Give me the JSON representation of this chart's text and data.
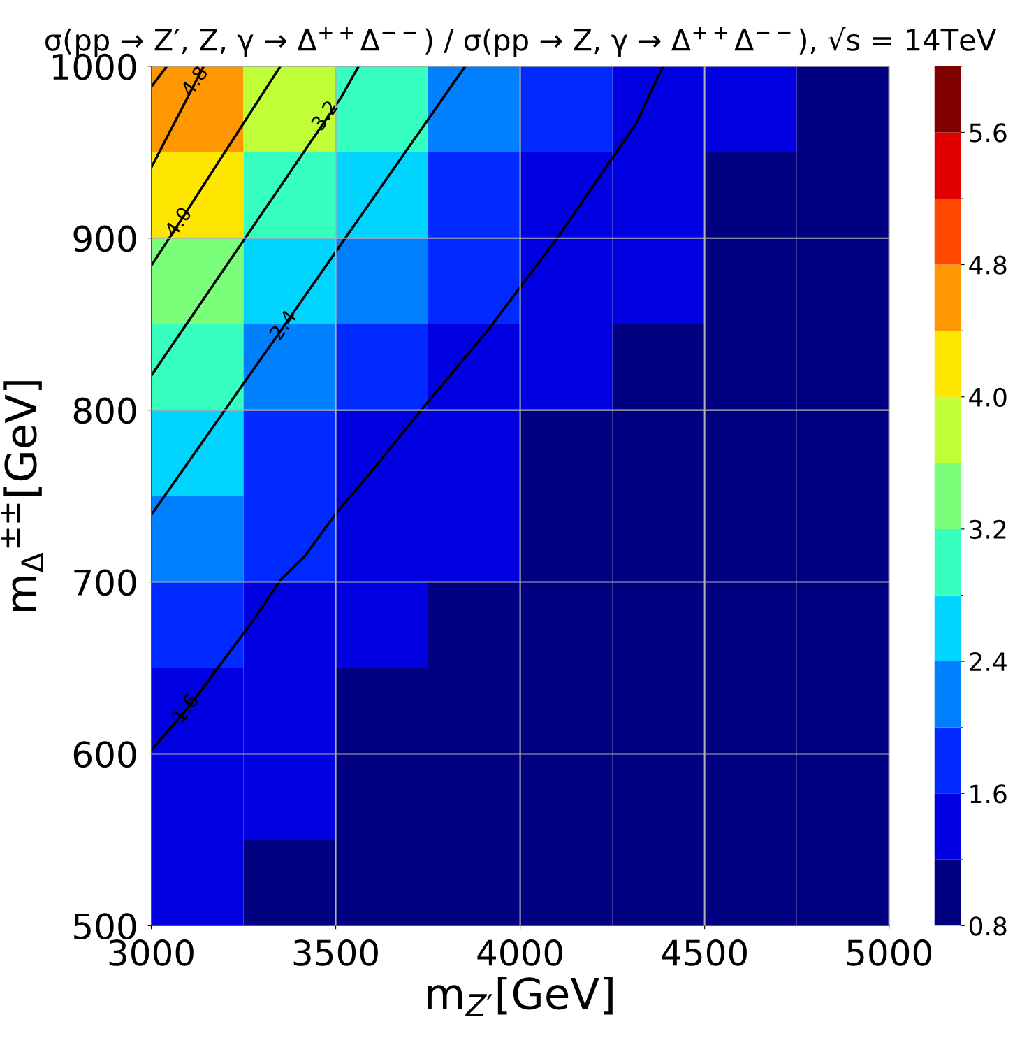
{
  "chart_data": {
    "type": "heatmap",
    "title": "σ(pp → Z′, Z, γ → Δ$^{++}$Δ$^{−−}$) / σ(pp → Z, γ → Δ$^{++}$Δ$^{−−}$), √s = 14TeV",
    "xlabel": "m$_{Z′}$[GeV]",
    "ylabel": "m$_{Δ}$$^{±±}$[GeV]",
    "x": [
      3125,
      3375,
      3625,
      3875,
      4125,
      4375,
      4625,
      4875
    ],
    "y": [
      975,
      925,
      875,
      825,
      775,
      725,
      675,
      625,
      575,
      525
    ],
    "cells": [
      [
        4.77,
        3.76,
        2.92,
        2.29,
        1.83,
        1.52,
        1.32,
        1.12
      ],
      [
        4.06,
        3.18,
        2.46,
        1.95,
        1.58,
        1.38,
        1.18,
        0.98
      ],
      [
        3.42,
        2.65,
        2.1,
        1.69,
        1.44,
        1.24,
        1.04,
        0.85
      ],
      [
        2.87,
        2.25,
        1.81,
        1.51,
        1.31,
        1.11,
        0.91,
        0.85
      ],
      [
        2.42,
        1.93,
        1.57,
        1.37,
        1.17,
        0.97,
        0.85,
        0.85
      ],
      [
        2.06,
        1.66,
        1.43,
        1.23,
        1.03,
        0.85,
        0.85,
        0.85
      ],
      [
        1.78,
        1.49,
        1.29,
        1.09,
        0.89,
        0.85,
        0.85,
        0.85
      ],
      [
        1.56,
        1.36,
        1.16,
        0.96,
        0.85,
        0.85,
        0.85,
        0.85
      ],
      [
        1.42,
        1.22,
        1.02,
        0.85,
        0.85,
        0.85,
        0.85,
        0.85
      ],
      [
        1.28,
        1.08,
        0.88,
        0.85,
        0.85,
        0.85,
        0.85,
        0.85
      ]
    ],
    "series": [
      {
        "type": "line",
        "color": "#000000",
        "x": [
          3000,
          3042
        ],
        "values": [
          988,
          1000
        ]
      },
      {
        "type": "line",
        "color": "#000000",
        "x": [
          3000,
          3142
        ],
        "values": [
          941,
          1000
        ]
      },
      {
        "type": "line",
        "color": "#000000",
        "x": [
          3000,
          3076,
          3350
        ],
        "values": [
          884,
          909,
          1000
        ]
      },
      {
        "type": "line",
        "color": "#000000",
        "x": [
          3000,
          3515,
          3562
        ],
        "values": [
          820,
          982,
          1000
        ]
      },
      {
        "type": "line",
        "color": "#000000",
        "x": [
          3000,
          3360,
          3851
        ],
        "values": [
          739,
          849,
          1000
        ]
      },
      {
        "type": "line",
        "color": "#000000",
        "x": [
          3000,
          3104,
          3274,
          3350,
          3416,
          3501,
          3596,
          3728,
          3918,
          4107,
          4315,
          4387
        ],
        "values": [
          602,
          628,
          677,
          701,
          715,
          740,
          764,
          799,
          848,
          902,
          967,
          1000
        ]
      }
    ],
    "annotations": [
      {
        "text": "4.8",
        "x": 3120,
        "y": 991
      },
      {
        "text": "4.0",
        "x": 3076,
        "y": 909
      },
      {
        "text": "3.2",
        "x": 3473,
        "y": 971
      },
      {
        "text": "2.4",
        "x": 3360,
        "y": 849
      },
      {
        "text": "1.6",
        "x": 3095,
        "y": 626
      }
    ],
    "line_style": "solid",
    "xlim": [
      3000,
      5000
    ],
    "xticks": [
      3000,
      3500,
      4000,
      4500,
      5000
    ],
    "ylim": [
      500,
      1000
    ],
    "yticks": [
      500,
      600,
      700,
      800,
      900,
      1000
    ],
    "clim": [
      0.8,
      6.0
    ],
    "cticks": [
      0.8,
      1.6,
      2.4,
      3.2,
      {
        "value": 4,
        "label": "4.0"
      },
      4.8,
      5.6
    ],
    "grid": true
  }
}
